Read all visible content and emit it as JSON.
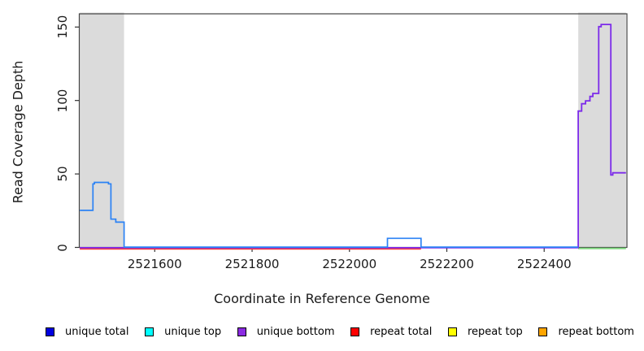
{
  "chart_data": {
    "type": "line",
    "subtype": "step-coverage",
    "title": "",
    "xlabel": "Coordinate in Reference Genome",
    "ylabel": "Read Coverage Depth",
    "xlim": [
      2521445,
      2522570
    ],
    "ylim": [
      0,
      159
    ],
    "x_ticks": [
      2521600,
      2521800,
      2522000,
      2522200,
      2522400
    ],
    "y_ticks": [
      0,
      50,
      100,
      150
    ],
    "grid": false,
    "background_color": "#ffffff",
    "box_color": "#444444",
    "highlight_regions": [
      {
        "name": "left-repeat-region",
        "x0": 2521446,
        "x1": 2521537,
        "color": "#dbdbdb"
      },
      {
        "name": "right-repeat-region",
        "x0": 2522470,
        "x1": 2522568,
        "color": "#dbdbdb"
      }
    ],
    "series": [
      {
        "name": "repeat total",
        "color": "#ff3b3b",
        "width": 2.2,
        "offset": 1.6,
        "points": [
          [
            2521446,
            0
          ],
          [
            2522147,
            0
          ]
        ]
      },
      {
        "name": "green baseline",
        "color": "#7fd87f",
        "width": 2.0,
        "offset": 1.2,
        "points": [
          [
            2522470,
            0
          ],
          [
            2522568,
            0
          ]
        ]
      },
      {
        "name": "unique bottom",
        "color": "#7c2bea",
        "width": 1.8,
        "offset": 0.4,
        "points": [
          [
            2521446,
            0
          ],
          [
            2522470,
            0
          ],
          [
            2522470,
            93
          ],
          [
            2522477,
            93
          ],
          [
            2522477,
            98
          ],
          [
            2522485,
            98
          ],
          [
            2522485,
            100
          ],
          [
            2522494,
            100
          ],
          [
            2522494,
            103
          ],
          [
            2522500,
            103
          ],
          [
            2522500,
            105
          ],
          [
            2522512,
            105
          ],
          [
            2522512,
            150.5
          ],
          [
            2522517,
            150.5
          ],
          [
            2522517,
            152
          ],
          [
            2522537,
            152
          ],
          [
            2522537,
            49.5
          ],
          [
            2522541,
            49.5
          ],
          [
            2522541,
            51
          ],
          [
            2522568,
            51
          ]
        ]
      },
      {
        "name": "unique total",
        "color": "#2b82f5",
        "width": 1.7,
        "offset": -0.4,
        "points": [
          [
            2521446,
            25
          ],
          [
            2521473,
            25
          ],
          [
            2521473,
            43
          ],
          [
            2521476,
            43
          ],
          [
            2521476,
            44
          ],
          [
            2521505,
            44
          ],
          [
            2521505,
            43
          ],
          [
            2521510,
            43
          ],
          [
            2521510,
            19
          ],
          [
            2521520,
            19
          ],
          [
            2521520,
            17
          ],
          [
            2521537,
            17
          ],
          [
            2521537,
            0
          ],
          [
            2522078,
            0
          ],
          [
            2522078,
            6
          ],
          [
            2522147,
            6
          ],
          [
            2522147,
            0
          ],
          [
            2522470,
            0
          ]
        ]
      }
    ],
    "legend": [
      {
        "label": "unique total",
        "color": "#0000e0"
      },
      {
        "label": "unique top",
        "color": "#00ffff"
      },
      {
        "label": "unique bottom",
        "color": "#8b2be2"
      },
      {
        "label": "repeat total",
        "color": "#ff0000"
      },
      {
        "label": "repeat top",
        "color": "#ffff00"
      },
      {
        "label": "repeat bottom",
        "color": "#ffa500"
      }
    ],
    "legend_position": "bottom"
  }
}
